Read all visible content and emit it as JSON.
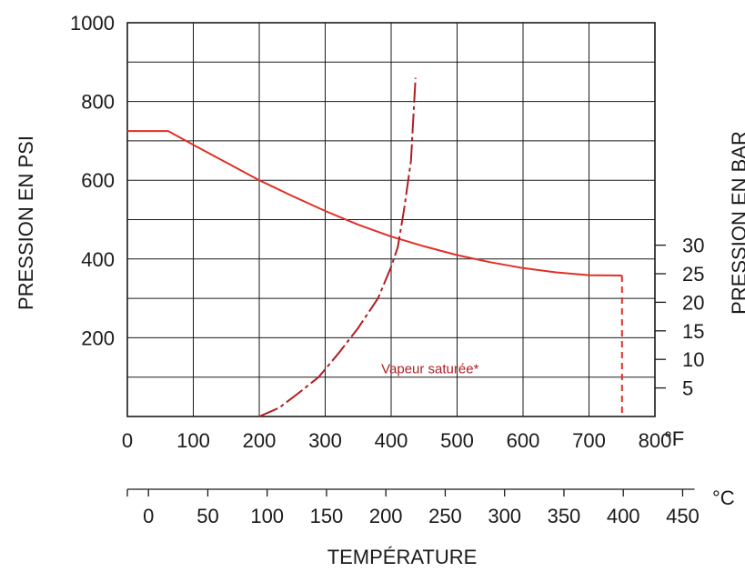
{
  "chart_data": {
    "type": "line",
    "y_left": {
      "label": "PRESSION EN PSI",
      "range": [
        0,
        1000
      ],
      "ticks": [
        200,
        400,
        600,
        800,
        1000
      ],
      "tick_labels": [
        "200",
        "400",
        "600",
        "800",
        "1000"
      ]
    },
    "y_right": {
      "label": "PRESSION EN BAR",
      "ticks": [
        5,
        10,
        15,
        20,
        25,
        30
      ],
      "tick_labels": [
        "5",
        "10",
        "15",
        "20",
        "25",
        "30"
      ]
    },
    "x_fahrenheit": {
      "unit": "°F",
      "range": [
        0,
        800
      ],
      "ticks": [
        0,
        100,
        200,
        300,
        400,
        500,
        600,
        700,
        800
      ],
      "tick_labels": [
        "0",
        "100",
        "200",
        "300",
        "400",
        "500",
        "600",
        "700",
        "800"
      ]
    },
    "x_celsius": {
      "unit": "°C",
      "ticks": [
        0,
        50,
        100,
        150,
        200,
        250,
        300,
        350,
        400,
        450
      ],
      "tick_labels": [
        "0",
        "50",
        "100",
        "150",
        "200",
        "250",
        "300",
        "350",
        "400",
        "450"
      ]
    },
    "xlabel": "TEMPÉRATURE",
    "grid": true,
    "series": [
      {
        "style": "solid",
        "color": "#e02f26",
        "points": [
          [
            0,
            725
          ],
          [
            62,
            725
          ],
          [
            100,
            690
          ],
          [
            150,
            645
          ],
          [
            200,
            600
          ],
          [
            250,
            560
          ],
          [
            300,
            522
          ],
          [
            350,
            487
          ],
          [
            400,
            457
          ],
          [
            450,
            432
          ],
          [
            500,
            410
          ],
          [
            550,
            392
          ],
          [
            600,
            377
          ],
          [
            650,
            366
          ],
          [
            700,
            359
          ],
          [
            750,
            358
          ]
        ]
      },
      {
        "style": "dashed-drop",
        "color": "#e02f26",
        "points": [
          [
            750,
            358
          ],
          [
            750,
            0
          ]
        ]
      },
      {
        "name": "Vapeur saturée*",
        "style": "dash-dot",
        "color": "#b01e23",
        "points": [
          [
            200,
            0
          ],
          [
            230,
            22
          ],
          [
            260,
            60
          ],
          [
            290,
            100
          ],
          [
            320,
            160
          ],
          [
            350,
            225
          ],
          [
            380,
            300
          ],
          [
            400,
            380
          ],
          [
            410,
            430
          ],
          [
            420,
            530
          ],
          [
            430,
            650
          ],
          [
            437,
            860
          ]
        ]
      }
    ],
    "annotations": [
      {
        "text": "Vapeur saturée*",
        "x": 385,
        "y": 110
      }
    ]
  }
}
